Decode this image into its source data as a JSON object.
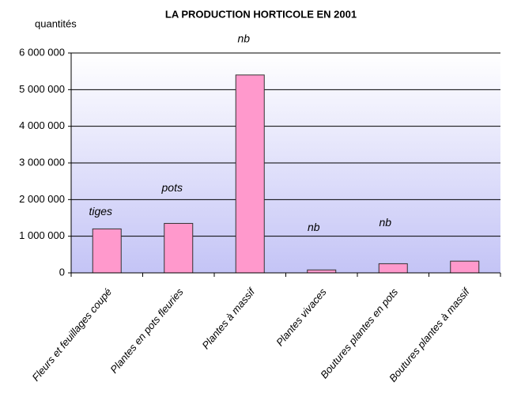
{
  "chart_data": {
    "type": "bar",
    "title": "LA PRODUCTION HORTICOLE EN 2001",
    "y_label": "quantités",
    "categories": [
      "Fleurs et feuillages coupé",
      "Plantes en pots fleuries",
      "Plantes à massif",
      "Plantes vivaces",
      "Boutures plantes en pots",
      "Boutures plantes à massif"
    ],
    "values": [
      1200000,
      1350000,
      5400000,
      80000,
      250000,
      320000
    ],
    "annotations": [
      "tiges",
      "pots",
      "nb",
      "nb",
      "nb",
      null
    ],
    "color": "#ff99cc",
    "ylim": [
      0,
      6000000
    ],
    "yticks": [
      0,
      {
        "value": 1000000,
        "label": "1 000 000"
      },
      {
        "value": 2000000,
        "label": "2 000 000"
      },
      {
        "value": 3000000,
        "label": "3 000 000"
      },
      {
        "value": 4000000,
        "label": "4 000 000"
      },
      {
        "value": 5000000,
        "label": "5 000 000"
      },
      {
        "value": 6000000,
        "label": "6 000 000"
      }
    ],
    "grid": true
  }
}
